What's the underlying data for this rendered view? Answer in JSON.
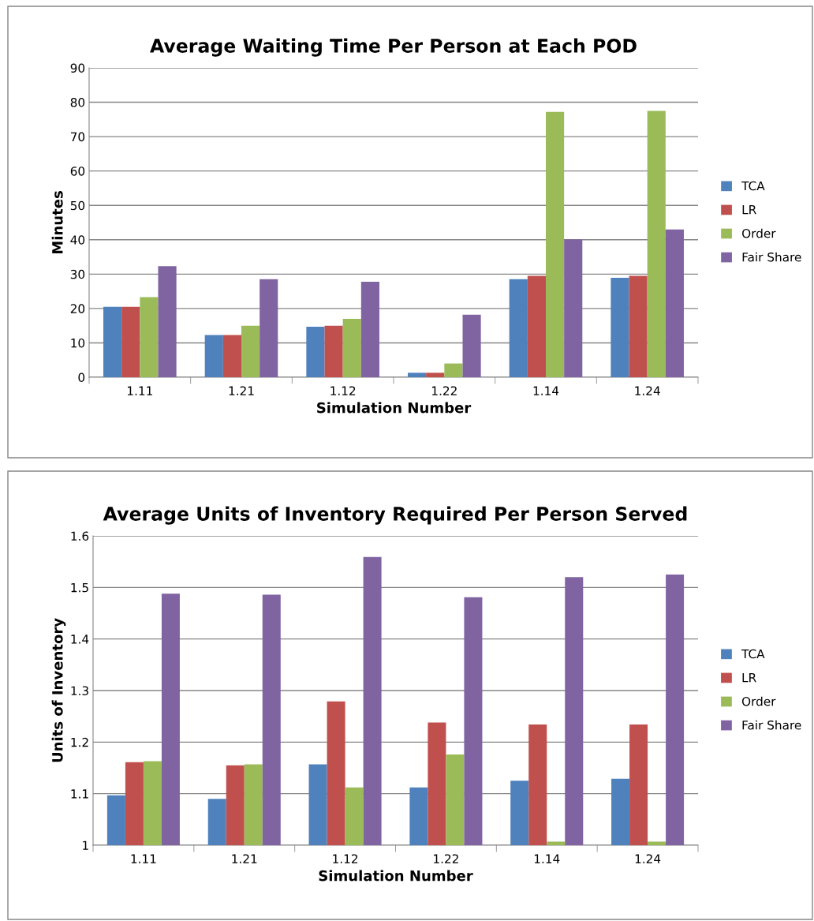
{
  "chart_data": [
    {
      "type": "bar",
      "title": "Average Waiting Time Per Person at Each POD",
      "xlabel": "Simulation Number",
      "ylabel": "Minutes",
      "categories": [
        "1.11",
        "1.21",
        "1.12",
        "1.22",
        "1.14",
        "1.24"
      ],
      "series": [
        {
          "name": "TCA",
          "color": "#4f81bd",
          "values": [
            20.5,
            12.3,
            14.7,
            1.3,
            28.5,
            28.9
          ]
        },
        {
          "name": "LR",
          "color": "#c0504d",
          "values": [
            20.5,
            12.3,
            15.0,
            1.3,
            29.5,
            29.5
          ]
        },
        {
          "name": "Order",
          "color": "#9bbb59",
          "values": [
            23.3,
            15.0,
            17.0,
            4.0,
            77.2,
            77.5
          ]
        },
        {
          "name": "Fair Share",
          "color": "#8064a2",
          "values": [
            32.3,
            28.5,
            27.8,
            18.2,
            40.1,
            43.0
          ]
        }
      ],
      "ylim": [
        0,
        90
      ],
      "yticks": [
        0,
        10,
        20,
        30,
        40,
        50,
        60,
        70,
        80,
        90
      ],
      "grid": "y",
      "legend": "right"
    },
    {
      "type": "bar",
      "title": "Average Units of Inventory Required Per Person Served",
      "xlabel": "Simulation Number",
      "ylabel": "Units of Inventory",
      "categories": [
        "1.11",
        "1.21",
        "1.12",
        "1.22",
        "1.14",
        "1.24"
      ],
      "series": [
        {
          "name": "TCA",
          "color": "#4f81bd",
          "values": [
            1.097,
            1.09,
            1.157,
            1.112,
            1.125,
            1.129
          ]
        },
        {
          "name": "LR",
          "color": "#c0504d",
          "values": [
            1.161,
            1.155,
            1.279,
            1.238,
            1.234,
            1.234
          ]
        },
        {
          "name": "Order",
          "color": "#9bbb59",
          "values": [
            1.163,
            1.157,
            1.112,
            1.176,
            1.007,
            1.007
          ]
        },
        {
          "name": "Fair Share",
          "color": "#8064a2",
          "values": [
            1.488,
            1.486,
            1.559,
            1.481,
            1.52,
            1.525
          ]
        }
      ],
      "ylim": [
        1,
        1.6
      ],
      "yticks": [
        1,
        1.1,
        1.2,
        1.3,
        1.4,
        1.5,
        1.6
      ],
      "grid": "y",
      "legend": "right"
    }
  ]
}
